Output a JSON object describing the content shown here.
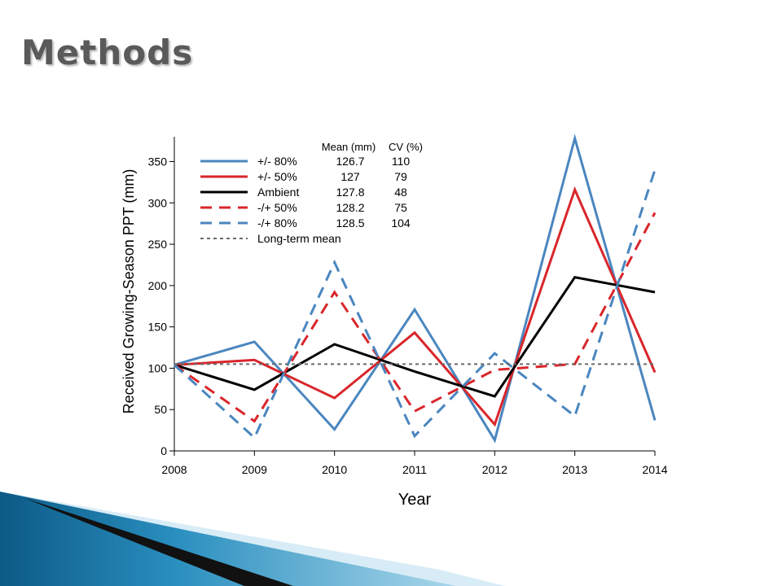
{
  "slide": {
    "title": "Methods"
  },
  "chart_data": {
    "type": "line",
    "xlabel": "Year",
    "ylabel": "Received Growing-Season PPT (mm)",
    "x": [
      2008,
      2009,
      2010,
      2011,
      2012,
      2013,
      2014
    ],
    "xlim": [
      2008,
      2014
    ],
    "ylim": [
      0,
      380
    ],
    "yticks": [
      0,
      50,
      100,
      150,
      200,
      250,
      300,
      350
    ],
    "xticks": [
      2008,
      2009,
      2010,
      2011,
      2012,
      2013,
      2014
    ],
    "grid": false,
    "legend_position": "top-left",
    "legend_headers": {
      "mean": "Mean (mm)",
      "cv": "CV (%)"
    },
    "series": [
      {
        "name": "+/- 80%",
        "mean": "126.7",
        "cv": "110",
        "color": "#4a86c0",
        "style": "solid",
        "values": [
          104,
          132,
          26,
          171,
          13,
          378,
          37
        ]
      },
      {
        "name": "+/- 50%",
        "mean": "127",
        "cv": "79",
        "color": "#d9262b",
        "style": "solid",
        "values": [
          104,
          110,
          64,
          143,
          32,
          316,
          95
        ]
      },
      {
        "name": "Ambient",
        "mean": "127.8",
        "cv": "48",
        "color": "#000000",
        "style": "solid",
        "values": [
          104,
          74,
          129,
          96,
          66,
          210,
          192
        ]
      },
      {
        "name": "-/+ 50%",
        "mean": "128.2",
        "cv": "75",
        "color": "#d9262b",
        "style": "dashed",
        "values": [
          104,
          36,
          192,
          48,
          98,
          105,
          288
        ]
      },
      {
        "name": "-/+ 80%",
        "mean": "128.5",
        "cv": "104",
        "color": "#4a86c0",
        "style": "dashed",
        "values": [
          104,
          16,
          228,
          18,
          118,
          42,
          340
        ]
      },
      {
        "name": "Long-term mean",
        "mean": "",
        "cv": "",
        "color": "#6b6b6b",
        "style": "dotted",
        "values": [
          105,
          105,
          105,
          105,
          105,
          105,
          105
        ]
      }
    ]
  }
}
